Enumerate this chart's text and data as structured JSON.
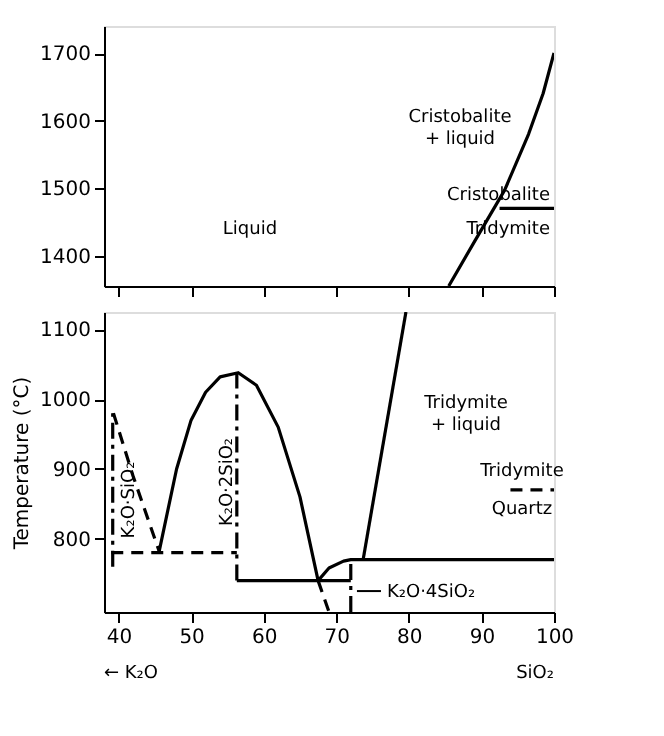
{
  "chart_data": [
    {
      "type": "line",
      "xlim": [
        38,
        100
      ],
      "xticks": [
        40,
        50,
        60,
        70,
        80,
        90,
        100
      ],
      "ylim": [
        1355,
        1740
      ],
      "yticks": [
        1400,
        1500,
        1600,
        1700
      ],
      "tick_labels": "y",
      "grid": false,
      "series": [
        {
          "color": "#000000",
          "line_style": "solid",
          "x": [
            85.5,
            89,
            93.2,
            96.5,
            98.5,
            100
          ],
          "values": [
            1355,
            1420,
            1497,
            1580,
            1640,
            1700
          ]
        },
        {
          "color": "#000000",
          "line_style": "solid",
          "x": [
            92.5,
            100
          ],
          "values": [
            1470,
            1470
          ]
        }
      ],
      "annotations": [
        "Liquid",
        "Cristobalite\n+ liquid",
        "Cristobalite",
        "Tridymite"
      ]
    },
    {
      "type": "line",
      "xlim": [
        38,
        100
      ],
      "xticks": [
        40,
        50,
        60,
        70,
        80,
        90,
        100
      ],
      "ylim": [
        695,
        1125
      ],
      "yticks": [
        800,
        900,
        1000,
        1100
      ],
      "ylabel": "Temperature (°C)",
      "grid": false,
      "series": [
        {
          "color": "#000000",
          "line_style": "dashed",
          "x": [
            39.3,
            42,
            45.6
          ],
          "values": [
            980,
            890,
            782
          ]
        },
        {
          "color": "#000000",
          "line_style": "solid",
          "x": [
            45.6,
            48,
            50,
            52,
            54,
            56.5,
            59,
            62,
            65,
            67.5,
            69,
            71,
            72,
            100
          ],
          "values": [
            782,
            900,
            970,
            1010,
            1032,
            1038,
            1020,
            960,
            860,
            740,
            758,
            768,
            770,
            770
          ]
        },
        {
          "color": "#000000",
          "line_style": "dashed",
          "x": [
            67.5,
            69
          ],
          "values": [
            740,
            695
          ]
        },
        {
          "color": "#000000",
          "line_style": "solid",
          "x": [
            73.7,
            79.6
          ],
          "values": [
            770,
            1125
          ]
        },
        {
          "color": "#000000",
          "line_style": "solid",
          "x": [
            56.3,
            72
          ],
          "values": [
            740,
            740
          ]
        },
        {
          "color": "#000000",
          "line_style": "dashed",
          "x": [
            39,
            56.3
          ],
          "values": [
            780,
            780
          ]
        },
        {
          "color": "#000000",
          "line_style": "dashdot",
          "x": [
            39.2,
            39.2
          ],
          "values": [
            760,
            980
          ]
        },
        {
          "color": "#000000",
          "line_style": "dashdot",
          "x": [
            56.3,
            56.3
          ],
          "values": [
            740,
            1040
          ]
        },
        {
          "color": "#000000",
          "line_style": "dashdot",
          "x": [
            72,
            72
          ],
          "values": [
            695,
            770
          ]
        },
        {
          "color": "#000000",
          "line_style": "dashed",
          "x": [
            94,
            100
          ],
          "values": [
            870,
            870
          ]
        }
      ],
      "annotations": [
        "← K₂O",
        "SiO₂",
        "Tridymite\n+ liquid",
        "Tridymite",
        "Quartz",
        "K₂O·SiO₂",
        "K₂O·2SiO₂",
        {
          "text": "K₂O·4SiO₂",
          "x": 72.3,
          "y": 725
        }
      ]
    }
  ]
}
